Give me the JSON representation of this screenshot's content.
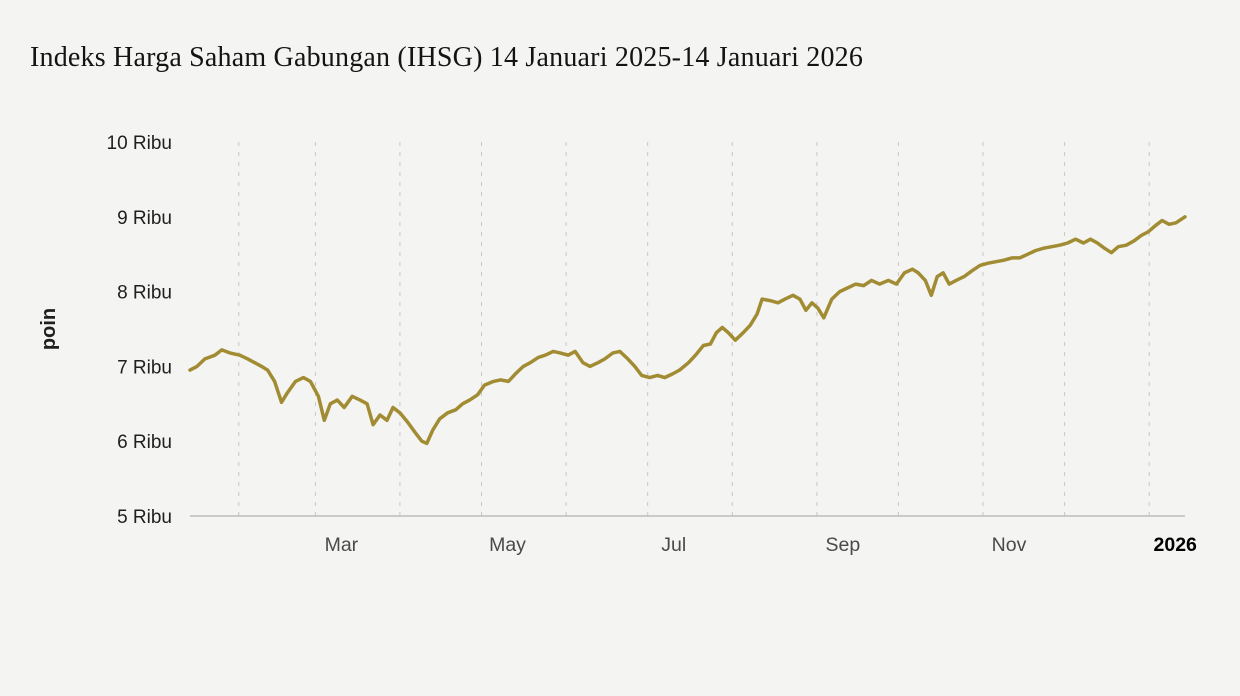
{
  "page": {
    "background": "#f4f4f2",
    "title": "Indeks Harga Saham Gabungan (IHSG) 14 Januari 2025-14 Januari 2026"
  },
  "chart_data": {
    "type": "line",
    "title": "Indeks Harga Saham Gabungan (IHSG) 14 Januari 2025-14 Januari 2026",
    "xlabel": "",
    "ylabel": "poin",
    "unit": "poin",
    "x_range_labels": [
      "14 Januari 2025",
      "14 Januari 2026"
    ],
    "ylim": [
      5000,
      10000
    ],
    "grid": "vertical-dashed-monthly",
    "legend": "none",
    "y_ticks": [
      {
        "label": "5 Ribu",
        "value": 5000
      },
      {
        "label": "6 Ribu",
        "value": 6000
      },
      {
        "label": "7 Ribu",
        "value": 7000
      },
      {
        "label": "8 Ribu",
        "value": 8000
      },
      {
        "label": "9 Ribu",
        "value": 9000
      },
      {
        "label": "10 Ribu",
        "value": 10000
      }
    ],
    "x_ticks": [
      {
        "label": "Mar",
        "t": 0.126,
        "bold": false
      },
      {
        "label": "May",
        "t": 0.293,
        "bold": false
      },
      {
        "label": "Jul",
        "t": 0.46,
        "bold": false
      },
      {
        "label": "Sep",
        "t": 0.63,
        "bold": false
      },
      {
        "label": "Nov",
        "t": 0.797,
        "bold": false
      },
      {
        "label": "2026",
        "t": 0.964,
        "bold": true
      }
    ],
    "month_gridlines_t": [
      0.049,
      0.126,
      0.211,
      0.293,
      0.378,
      0.46,
      0.545,
      0.63,
      0.712,
      0.797,
      0.879,
      0.964
    ],
    "colors": {
      "line": "#a28c33",
      "grid": "#c7c7c4",
      "baseline": "#bcbcb9",
      "tick_text": "#1f1f1f",
      "month_text": "#4a4a4a",
      "year_text": "#000000"
    },
    "series": [
      {
        "name": "IHSG",
        "points": [
          [
            0.0,
            6950
          ],
          [
            0.007,
            7000
          ],
          [
            0.015,
            7100
          ],
          [
            0.025,
            7150
          ],
          [
            0.032,
            7220
          ],
          [
            0.04,
            7180
          ],
          [
            0.05,
            7150
          ],
          [
            0.058,
            7100
          ],
          [
            0.065,
            7050
          ],
          [
            0.072,
            7000
          ],
          [
            0.078,
            6950
          ],
          [
            0.085,
            6800
          ],
          [
            0.092,
            6520
          ],
          [
            0.098,
            6650
          ],
          [
            0.106,
            6800
          ],
          [
            0.114,
            6850
          ],
          [
            0.121,
            6800
          ],
          [
            0.129,
            6600
          ],
          [
            0.135,
            6280
          ],
          [
            0.141,
            6500
          ],
          [
            0.148,
            6550
          ],
          [
            0.155,
            6450
          ],
          [
            0.163,
            6600
          ],
          [
            0.171,
            6550
          ],
          [
            0.178,
            6500
          ],
          [
            0.184,
            6220
          ],
          [
            0.191,
            6350
          ],
          [
            0.198,
            6280
          ],
          [
            0.204,
            6450
          ],
          [
            0.211,
            6380
          ],
          [
            0.219,
            6250
          ],
          [
            0.226,
            6120
          ],
          [
            0.233,
            6000
          ],
          [
            0.238,
            5970
          ],
          [
            0.244,
            6150
          ],
          [
            0.251,
            6300
          ],
          [
            0.259,
            6380
          ],
          [
            0.267,
            6420
          ],
          [
            0.274,
            6500
          ],
          [
            0.281,
            6550
          ],
          [
            0.289,
            6620
          ],
          [
            0.296,
            6750
          ],
          [
            0.305,
            6800
          ],
          [
            0.312,
            6820
          ],
          [
            0.32,
            6800
          ],
          [
            0.327,
            6900
          ],
          [
            0.335,
            7000
          ],
          [
            0.342,
            7050
          ],
          [
            0.35,
            7120
          ],
          [
            0.357,
            7150
          ],
          [
            0.365,
            7200
          ],
          [
            0.372,
            7180
          ],
          [
            0.38,
            7150
          ],
          [
            0.387,
            7200
          ],
          [
            0.395,
            7050
          ],
          [
            0.402,
            7000
          ],
          [
            0.41,
            7050
          ],
          [
            0.417,
            7100
          ],
          [
            0.425,
            7180
          ],
          [
            0.432,
            7200
          ],
          [
            0.44,
            7100
          ],
          [
            0.447,
            7000
          ],
          [
            0.454,
            6880
          ],
          [
            0.462,
            6850
          ],
          [
            0.47,
            6880
          ],
          [
            0.477,
            6850
          ],
          [
            0.485,
            6900
          ],
          [
            0.492,
            6950
          ],
          [
            0.501,
            7050
          ],
          [
            0.508,
            7150
          ],
          [
            0.516,
            7280
          ],
          [
            0.523,
            7300
          ],
          [
            0.529,
            7450
          ],
          [
            0.535,
            7520
          ],
          [
            0.541,
            7450
          ],
          [
            0.548,
            7350
          ],
          [
            0.556,
            7450
          ],
          [
            0.563,
            7550
          ],
          [
            0.57,
            7700
          ],
          [
            0.575,
            7900
          ],
          [
            0.583,
            7880
          ],
          [
            0.591,
            7850
          ],
          [
            0.598,
            7900
          ],
          [
            0.606,
            7950
          ],
          [
            0.613,
            7900
          ],
          [
            0.619,
            7750
          ],
          [
            0.625,
            7850
          ],
          [
            0.631,
            7780
          ],
          [
            0.637,
            7650
          ],
          [
            0.645,
            7900
          ],
          [
            0.653,
            8000
          ],
          [
            0.661,
            8050
          ],
          [
            0.669,
            8100
          ],
          [
            0.677,
            8080
          ],
          [
            0.685,
            8150
          ],
          [
            0.693,
            8100
          ],
          [
            0.702,
            8150
          ],
          [
            0.71,
            8100
          ],
          [
            0.718,
            8250
          ],
          [
            0.726,
            8300
          ],
          [
            0.732,
            8250
          ],
          [
            0.739,
            8150
          ],
          [
            0.745,
            7950
          ],
          [
            0.751,
            8200
          ],
          [
            0.757,
            8250
          ],
          [
            0.763,
            8100
          ],
          [
            0.77,
            8150
          ],
          [
            0.778,
            8200
          ],
          [
            0.786,
            8280
          ],
          [
            0.794,
            8350
          ],
          [
            0.802,
            8380
          ],
          [
            0.81,
            8400
          ],
          [
            0.818,
            8420
          ],
          [
            0.826,
            8450
          ],
          [
            0.834,
            8450
          ],
          [
            0.842,
            8500
          ],
          [
            0.85,
            8550
          ],
          [
            0.858,
            8580
          ],
          [
            0.866,
            8600
          ],
          [
            0.874,
            8620
          ],
          [
            0.882,
            8650
          ],
          [
            0.89,
            8700
          ],
          [
            0.898,
            8650
          ],
          [
            0.905,
            8700
          ],
          [
            0.912,
            8650
          ],
          [
            0.919,
            8580
          ],
          [
            0.926,
            8520
          ],
          [
            0.933,
            8600
          ],
          [
            0.941,
            8620
          ],
          [
            0.949,
            8680
          ],
          [
            0.956,
            8750
          ],
          [
            0.963,
            8800
          ],
          [
            0.97,
            8880
          ],
          [
            0.977,
            8950
          ],
          [
            0.984,
            8900
          ],
          [
            0.991,
            8920
          ],
          [
            1.0,
            9000
          ]
        ]
      }
    ]
  }
}
